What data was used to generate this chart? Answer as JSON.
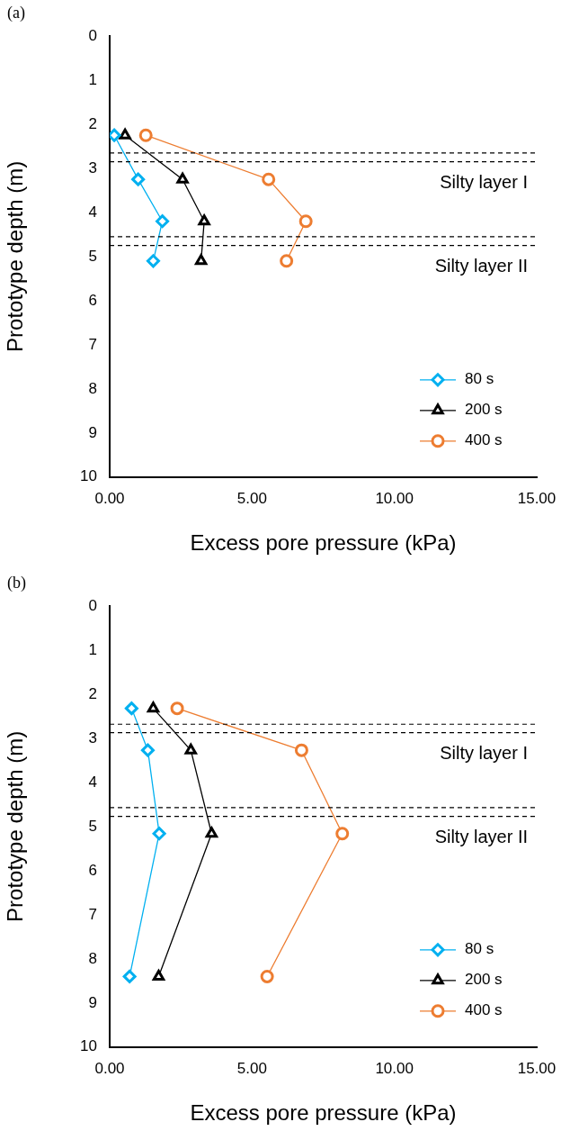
{
  "chart_data": [
    {
      "type": "line",
      "title": "(a)",
      "xlabel": "Excess pore pressure (kPa)",
      "ylabel": "Prototype depth (m)",
      "xlim": [
        0,
        15
      ],
      "xticks": [
        {
          "value": 0,
          "label": "0.00"
        },
        {
          "value": 5,
          "label": "5.00"
        },
        {
          "value": 10,
          "label": "10.00"
        },
        {
          "value": 15,
          "label": "15.00"
        }
      ],
      "ylim": [
        10,
        0
      ],
      "yticks": [
        0,
        1,
        2,
        3,
        4,
        5,
        6,
        7,
        8,
        9,
        10
      ],
      "grid": false,
      "legend": "bottom right",
      "line_style": "solid",
      "series": [
        {
          "name": "80 s",
          "color": "#00b0f0",
          "marker": "diamond",
          "x": [
            0.16,
            1.0,
            1.85,
            1.53
          ],
          "values": [
            2.25,
            3.25,
            4.2,
            5.1
          ]
        },
        {
          "name": "200 s",
          "color": "#000000",
          "marker": "triangle",
          "x": [
            0.54,
            2.56,
            3.32,
            3.21
          ],
          "values": [
            2.25,
            3.25,
            4.2,
            5.1
          ]
        },
        {
          "name": "400 s",
          "color": "#ed7d31",
          "marker": "circle",
          "x": [
            1.27,
            5.58,
            6.89,
            6.21
          ],
          "values": [
            2.25,
            3.25,
            4.2,
            5.1
          ]
        }
      ],
      "ref_lines": [
        {
          "axis": "y",
          "value": 2.65,
          "color": "#000000",
          "line_style": "dashed"
        },
        {
          "axis": "y",
          "value": 2.85,
          "color": "#000000",
          "line_style": "dashed",
          "label": "Silty layer I"
        },
        {
          "axis": "y",
          "value": 4.55,
          "color": "#000000",
          "line_style": "dashed"
        },
        {
          "axis": "y",
          "value": 4.75,
          "color": "#000000",
          "line_style": "dashed",
          "label": "Silty layer II"
        }
      ]
    },
    {
      "type": "line",
      "title": "(b)",
      "xlabel": "Excess pore pressure (kPa)",
      "ylabel": "Prototype depth (m)",
      "xlim": [
        0,
        15
      ],
      "xticks": [
        {
          "value": 0,
          "label": "0.00"
        },
        {
          "value": 5,
          "label": "5.00"
        },
        {
          "value": 10,
          "label": "10.00"
        },
        {
          "value": 15,
          "label": "15.00"
        }
      ],
      "ylim": [
        10,
        0
      ],
      "yticks": [
        0,
        1,
        2,
        3,
        4,
        5,
        6,
        7,
        8,
        9,
        10
      ],
      "grid": false,
      "legend": "bottom right",
      "line_style": "solid",
      "series": [
        {
          "name": "80 s",
          "color": "#00b0f0",
          "marker": "diamond",
          "x": [
            0.77,
            1.34,
            1.74,
            0.7
          ],
          "values": [
            2.32,
            3.27,
            5.16,
            8.4
          ]
        },
        {
          "name": "200 s",
          "color": "#000000",
          "marker": "triangle",
          "x": [
            1.53,
            2.85,
            3.58,
            1.72
          ],
          "values": [
            2.32,
            3.27,
            5.16,
            8.4
          ]
        },
        {
          "name": "400 s",
          "color": "#ed7d31",
          "marker": "circle",
          "x": [
            2.37,
            6.74,
            8.17,
            5.53
          ],
          "values": [
            2.32,
            3.27,
            5.16,
            8.4
          ]
        }
      ],
      "ref_lines": [
        {
          "axis": "y",
          "value": 2.68,
          "color": "#000000",
          "line_style": "dashed"
        },
        {
          "axis": "y",
          "value": 2.87,
          "color": "#000000",
          "line_style": "dashed",
          "label": "Silty layer I"
        },
        {
          "axis": "y",
          "value": 4.57,
          "color": "#000000",
          "line_style": "dashed"
        },
        {
          "axis": "y",
          "value": 4.77,
          "color": "#000000",
          "line_style": "dashed",
          "label": "Silty layer II"
        }
      ]
    }
  ]
}
